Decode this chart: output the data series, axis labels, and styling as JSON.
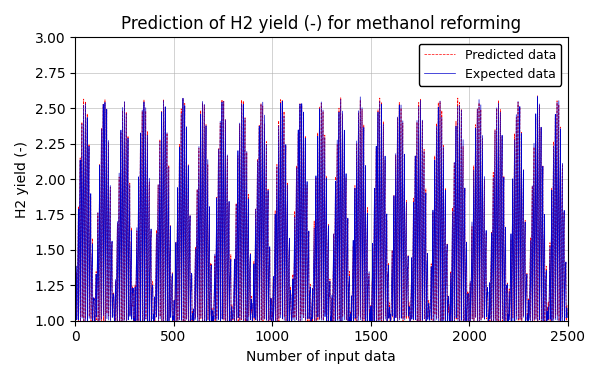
{
  "title": "Prediction of H2 yield (-) for methanol reforming",
  "xlabel": "Number of input data",
  "ylabel": "H2 yield (-)",
  "ylim": [
    1.0,
    3.0
  ],
  "xlim": [
    0,
    2500
  ],
  "expected_color": "#0000cc",
  "predicted_color": "#ff0000",
  "expected_label": "Expected data",
  "predicted_label": "Predicted data",
  "n_points": 2500,
  "fast_cycle": 9,
  "slow_cycle": 100,
  "base_min": 1.0,
  "base_max": 2.75,
  "background_color": "#ffffff",
  "grid_color": "#b0b0b0",
  "title_fontsize": 12
}
